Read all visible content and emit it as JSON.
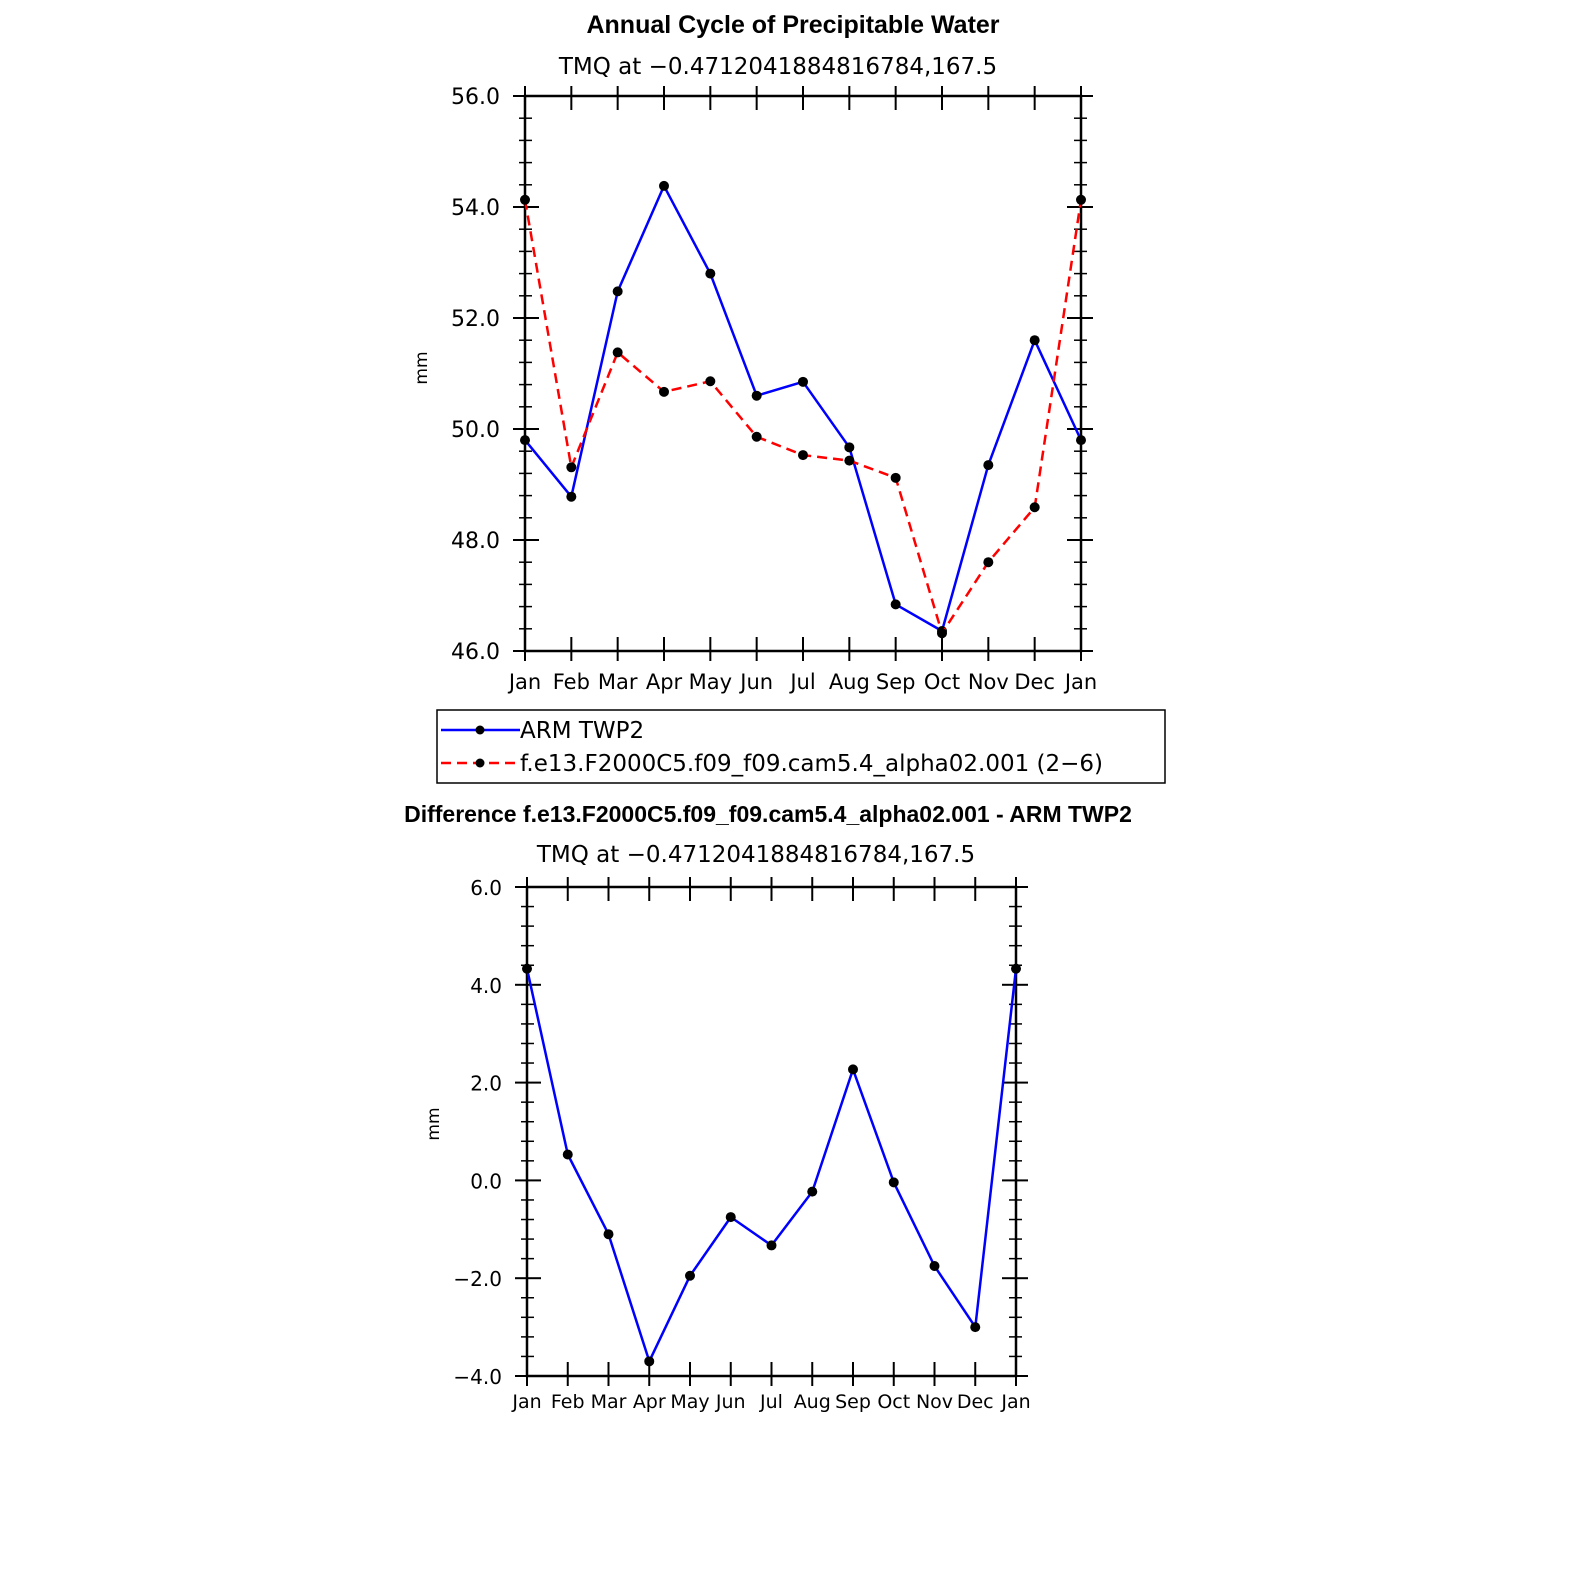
{
  "chart_data": [
    {
      "type": "line",
      "title": "Annual Cycle of Precipitable Water",
      "subtitle": "TMQ  at  −0.4712041884816784,167.5",
      "xlabel": "",
      "ylabel": "mm",
      "categories": [
        "Jan",
        "Feb",
        "Mar",
        "Apr",
        "May",
        "Jun",
        "Jul",
        "Aug",
        "Sep",
        "Oct",
        "Nov",
        "Dec",
        "Jan"
      ],
      "yticks": [
        "46.0",
        "48.0",
        "50.0",
        "52.0",
        "54.0",
        "56.0"
      ],
      "ylim": [
        46.0,
        56.0
      ],
      "grid": false,
      "legend": "bottom",
      "series": [
        {
          "name": "ARM TWP2",
          "color": "#0000ff",
          "dash": "solid",
          "values": [
            49.8,
            48.78,
            52.48,
            54.38,
            52.8,
            50.6,
            50.85,
            49.67,
            46.84,
            46.36,
            49.35,
            51.6,
            49.8
          ]
        },
        {
          "name": "f.e13.F2000C5.f09_f09.cam5.4_alpha02.001 (2−6)",
          "color": "#ff0000",
          "dash": "dashed",
          "values": [
            54.13,
            49.31,
            51.38,
            50.67,
            50.86,
            49.86,
            49.53,
            49.43,
            49.12,
            46.32,
            47.6,
            48.59,
            54.13
          ]
        }
      ]
    },
    {
      "type": "line",
      "title": "Difference f.e13.F2000C5.f09_f09.cam5.4_alpha02.001 - ARM TWP2",
      "subtitle": "TMQ  at  −0.4712041884816784,167.5",
      "xlabel": "",
      "ylabel": "mm",
      "categories": [
        "Jan",
        "Feb",
        "Mar",
        "Apr",
        "May",
        "Jun",
        "Jul",
        "Aug",
        "Sep",
        "Oct",
        "Nov",
        "Dec",
        "Jan"
      ],
      "yticks": [
        "−4.0",
        "−2.0",
        "0.0",
        "2.0",
        "4.0",
        "6.0"
      ],
      "ylim": [
        -4.0,
        6.0
      ],
      "grid": false,
      "legend": "none",
      "series": [
        {
          "color": "#0000ff",
          "dash": "solid",
          "values": [
            4.33,
            0.53,
            -1.1,
            -3.7,
            -1.95,
            -0.75,
            -1.33,
            -0.23,
            2.27,
            -0.04,
            -1.75,
            -3.0,
            4.33
          ]
        }
      ]
    }
  ]
}
